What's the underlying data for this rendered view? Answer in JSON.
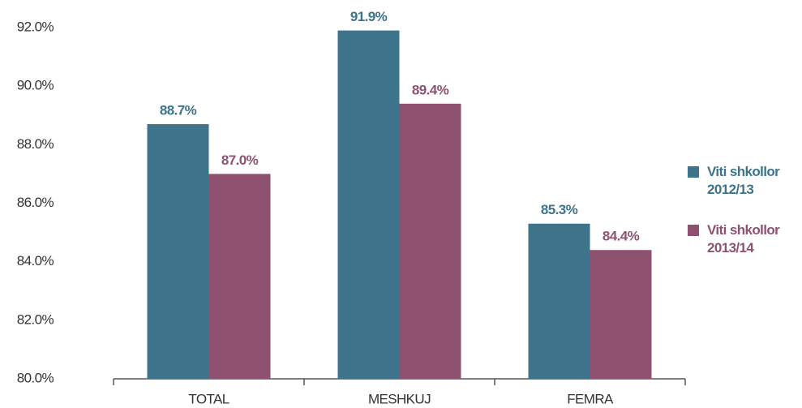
{
  "chart_data": {
    "type": "bar",
    "categories": [
      "TOTAL",
      "MESHKUJ",
      "FEMRA"
    ],
    "series": [
      {
        "name": "Viti shkollor 2012/13",
        "color": "#3e748b",
        "values": [
          88.7,
          91.9,
          85.3
        ],
        "value_labels": [
          "88.7%",
          "91.9%",
          "85.3%"
        ]
      },
      {
        "name": "Viti shkollor 2013/14",
        "color": "#8e5170",
        "values": [
          87.0,
          89.4,
          84.4
        ],
        "value_labels": [
          "87.0%",
          "89.4%",
          "84.4%"
        ]
      }
    ],
    "ylim": [
      80,
      92
    ],
    "yticks": [
      {
        "value": 80,
        "label": "80.0%"
      },
      {
        "value": 82,
        "label": "82.0%"
      },
      {
        "value": 84,
        "label": "84.0%"
      },
      {
        "value": 86,
        "label": "86.0%"
      },
      {
        "value": 88,
        "label": "88.0%"
      },
      {
        "value": 90,
        "label": "90.0%"
      },
      {
        "value": 92,
        "label": "92.0%"
      }
    ],
    "grid": false,
    "legend": "right"
  }
}
